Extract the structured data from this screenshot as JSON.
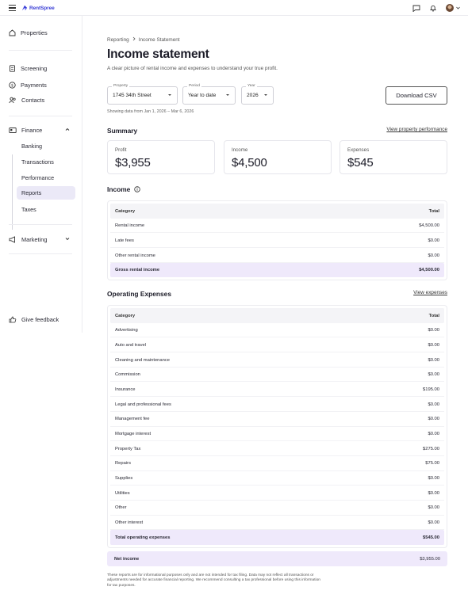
{
  "app": {
    "brand": "RentSpree"
  },
  "sidebar": {
    "items": [
      {
        "label": "Properties"
      },
      {
        "label": "Screening"
      },
      {
        "label": "Payments"
      },
      {
        "label": "Contacts"
      },
      {
        "label": "Finance"
      },
      {
        "label": "Marketing"
      }
    ],
    "finance_subitems": [
      {
        "label": "Banking"
      },
      {
        "label": "Transactions"
      },
      {
        "label": "Performance"
      },
      {
        "label": "Reports"
      },
      {
        "label": "Taxes"
      }
    ],
    "active_subitem": "Reports",
    "feedback_label": "Give feedback"
  },
  "breadcrumb": {
    "parent": "Reporting",
    "current": "Income Statement"
  },
  "page": {
    "title": "Income statement",
    "subtitle": "A clear picture of rental income and expenses to understand your true profit."
  },
  "filters": {
    "property": {
      "label": "Property",
      "value": "1745 34th Street"
    },
    "period": {
      "label": "Period",
      "value": "Year to date"
    },
    "year": {
      "label": "Year",
      "value": "2026"
    },
    "showing": "Showing data from Jan 1, 2026 – Mar 6, 2026",
    "download_label": "Download CSV"
  },
  "summary": {
    "heading": "Summary",
    "link": "View property performance",
    "cards": [
      {
        "label": "Profit",
        "value": "$3,955"
      },
      {
        "label": "Income",
        "value": "$4,500"
      },
      {
        "label": "Expenses",
        "value": "$545"
      }
    ]
  },
  "income": {
    "heading": "Income",
    "columns": [
      "Category",
      "Total"
    ],
    "rows": [
      {
        "category": "Rental income",
        "total": "$4,500.00"
      },
      {
        "category": "Late fees",
        "total": "$0.00"
      },
      {
        "category": "Other rental income",
        "total": "$0.00"
      }
    ],
    "total": {
      "category": "Gross rental income",
      "total": "$4,500.00"
    }
  },
  "expenses": {
    "heading": "Operating Expenses",
    "link": "View expenses",
    "columns": [
      "Category",
      "Total"
    ],
    "rows": [
      {
        "category": "Advertising",
        "total": "$0.00"
      },
      {
        "category": "Auto and travel",
        "total": "$0.00"
      },
      {
        "category": "Cleaning and maintenance",
        "total": "$0.00"
      },
      {
        "category": "Commission",
        "total": "$0.00"
      },
      {
        "category": "Insurance",
        "total": "$195.00"
      },
      {
        "category": "Legal and professional fees",
        "total": "$0.00"
      },
      {
        "category": "Management fee",
        "total": "$0.00"
      },
      {
        "category": "Mortgage interest",
        "total": "$0.00"
      },
      {
        "category": "Property Tax",
        "total": "$275.00"
      },
      {
        "category": "Repairs",
        "total": "$75.00"
      },
      {
        "category": "Supplies",
        "total": "$0.00"
      },
      {
        "category": "Utilities",
        "total": "$0.00"
      },
      {
        "category": "Other",
        "total": "$0.00"
      },
      {
        "category": "Other interest",
        "total": "$0.00"
      }
    ],
    "total": {
      "category": "Total operating expenses",
      "total": "$545.00"
    }
  },
  "net_income": {
    "label": "Net income",
    "value": "$3,955.00"
  },
  "footnote": "These reports are for informational purposes only and are not intended for tax filing. Data may not reflect all transactions or adjustments needed for accurate financial reporting. We recommend consulting a tax professional before using this information for tax purposes.",
  "colors": {
    "brand": "#3b3fd6",
    "highlight": "#efe9fb",
    "active_nav": "#ebe9f7"
  }
}
